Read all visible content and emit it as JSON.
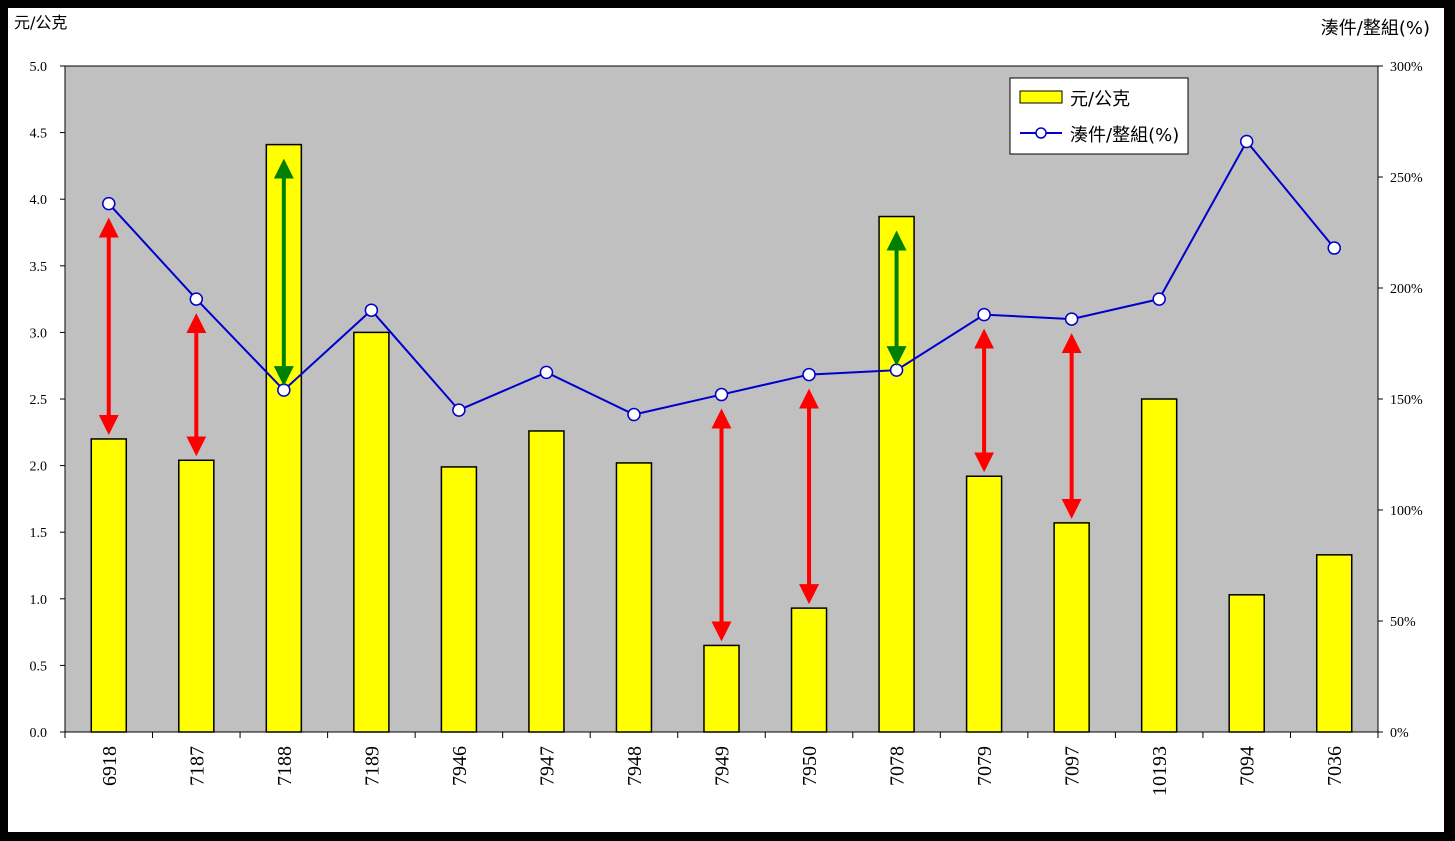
{
  "chart_data": {
    "type": "bar",
    "categories": [
      "6918",
      "7187",
      "7188",
      "7189",
      "7946",
      "7947",
      "7948",
      "7949",
      "7950",
      "7078",
      "7079",
      "7097",
      "10193",
      "7094",
      "7036"
    ],
    "series": [
      {
        "name": "元/公克",
        "type": "bar",
        "axis": "left",
        "color": "#FFFF00",
        "values": [
          2.2,
          2.04,
          4.41,
          3.0,
          1.99,
          2.26,
          2.02,
          0.65,
          0.93,
          3.87,
          1.92,
          1.57,
          2.5,
          1.03,
          1.33
        ]
      },
      {
        "name": "湊件/整組(%)",
        "type": "line",
        "axis": "right",
        "color": "#0000CC",
        "values": [
          238,
          195,
          154,
          190,
          145,
          162,
          143,
          152,
          161,
          163,
          188,
          186,
          195,
          266,
          218
        ]
      }
    ],
    "y_left": {
      "label": "元/公克",
      "ylim": [
        0,
        5
      ],
      "ticks": [
        "0.0",
        "0.5",
        "1.0",
        "1.5",
        "2.0",
        "2.5",
        "3.0",
        "3.5",
        "4.0",
        "4.5",
        "5.0"
      ]
    },
    "y_right": {
      "label": "湊件/整組(%)",
      "ylim": [
        0,
        300
      ],
      "ticks": [
        "0%",
        "50%",
        "100%",
        "150%",
        "200%",
        "250%",
        "300%"
      ]
    },
    "annotations": [
      {
        "category": "6918",
        "color": "#FF0000"
      },
      {
        "category": "7187",
        "color": "#FF0000"
      },
      {
        "category": "7188",
        "color": "#008000"
      },
      {
        "category": "7949",
        "color": "#FF0000"
      },
      {
        "category": "7950",
        "color": "#FF0000"
      },
      {
        "category": "7078",
        "color": "#008000"
      },
      {
        "category": "7079",
        "color": "#FF0000"
      },
      {
        "category": "7097",
        "color": "#FF0000"
      }
    ],
    "legend_position": "top-right",
    "plot_background": "#C0C0C0",
    "grid": false
  }
}
